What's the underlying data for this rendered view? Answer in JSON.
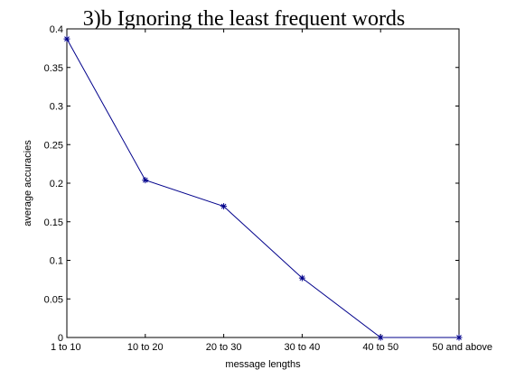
{
  "chart_data": {
    "type": "line",
    "title": "3)b Ignoring the least frequent words",
    "xlabel": "message lengths",
    "ylabel": "average accuracies",
    "categories": [
      "1 to 10",
      "10 to 20",
      "20 to 30",
      "30 to 40",
      "40 to 50",
      "50 and above"
    ],
    "series": [
      {
        "values": [
          0.387,
          0.204,
          0.17,
          0.077,
          0.0,
          0.0
        ],
        "color": "#00008b",
        "marker": "star"
      }
    ],
    "ylim": [
      0,
      0.4
    ],
    "yticks": [
      0,
      0.05,
      0.1,
      0.15,
      0.2,
      0.25,
      0.3,
      0.35,
      0.4
    ],
    "ytick_labels": [
      "0",
      "0.05",
      "0.1",
      "0.15",
      "0.2",
      "0.25",
      "0.3",
      "0.35",
      "0.4"
    ],
    "grid": false,
    "legend": "none"
  }
}
